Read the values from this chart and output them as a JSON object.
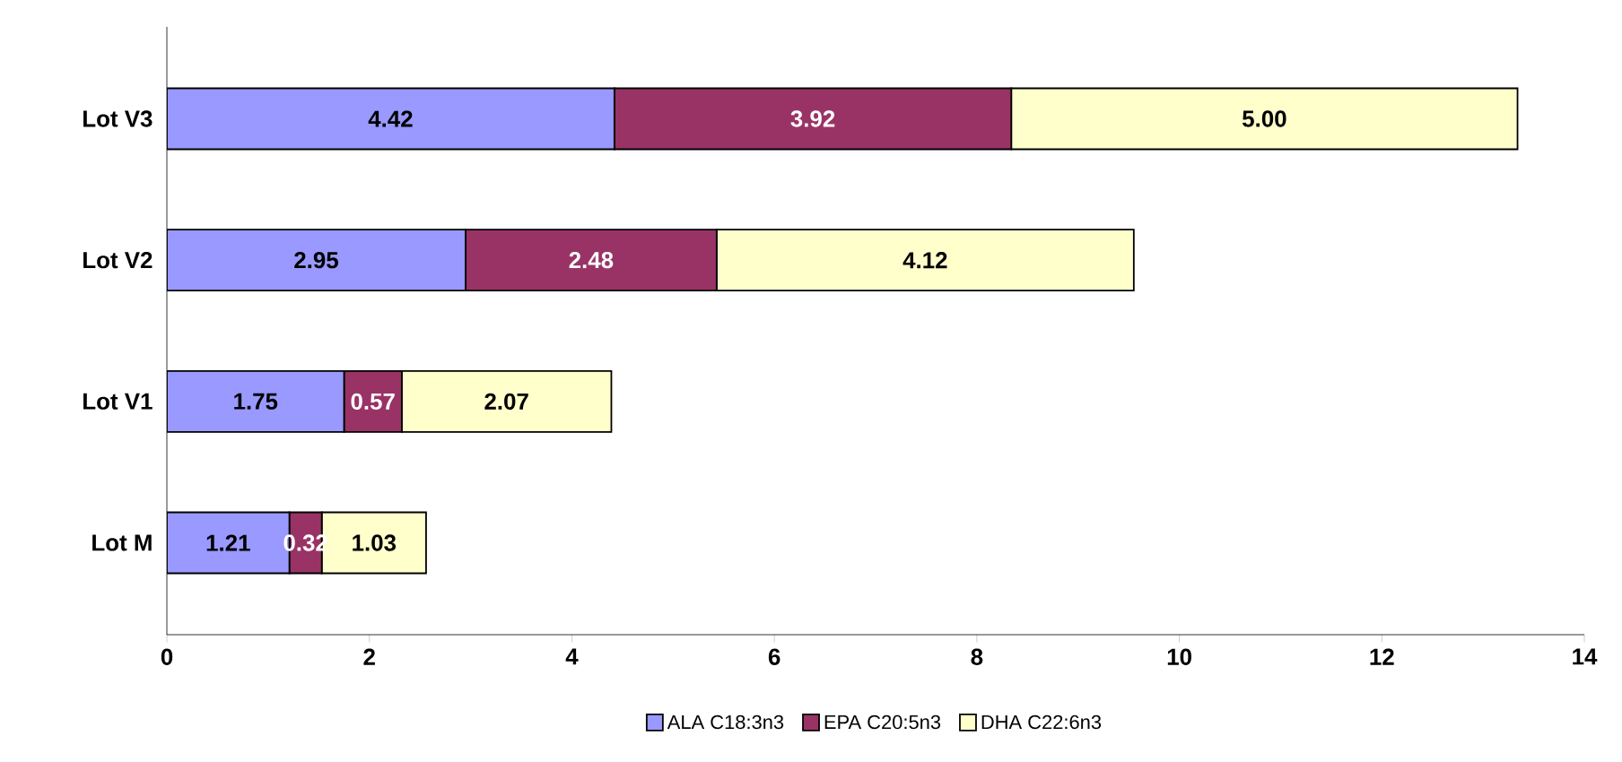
{
  "chart_data": {
    "type": "bar",
    "orientation": "horizontal",
    "stacked": true,
    "categories": [
      "Lot V3",
      "Lot V2",
      "Lot V1",
      "Lot M"
    ],
    "series": [
      {
        "name": "ALA C18:3n3",
        "color": "#9999ff",
        "values": [
          4.42,
          2.95,
          1.75,
          1.21
        ],
        "value_labels": [
          "4.42",
          "2.95",
          "1.75",
          "1.21"
        ]
      },
      {
        "name": "EPA C20:5n3",
        "color": "#993366",
        "values": [
          3.92,
          2.48,
          0.57,
          0.32
        ],
        "value_labels": [
          "3.92",
          "2.48",
          "0.57",
          "0.32"
        ]
      },
      {
        "name": "DHA C22:6n3",
        "color": "#ffffcc",
        "values": [
          5.0,
          4.12,
          2.07,
          1.03
        ],
        "value_labels": [
          "5.00",
          "4.12",
          "2.07",
          "1.03"
        ]
      }
    ],
    "xlim": [
      0,
      14
    ],
    "xticks": [
      0,
      2,
      4,
      6,
      8,
      10,
      12,
      14
    ],
    "grid": false,
    "legend": "bottom"
  }
}
